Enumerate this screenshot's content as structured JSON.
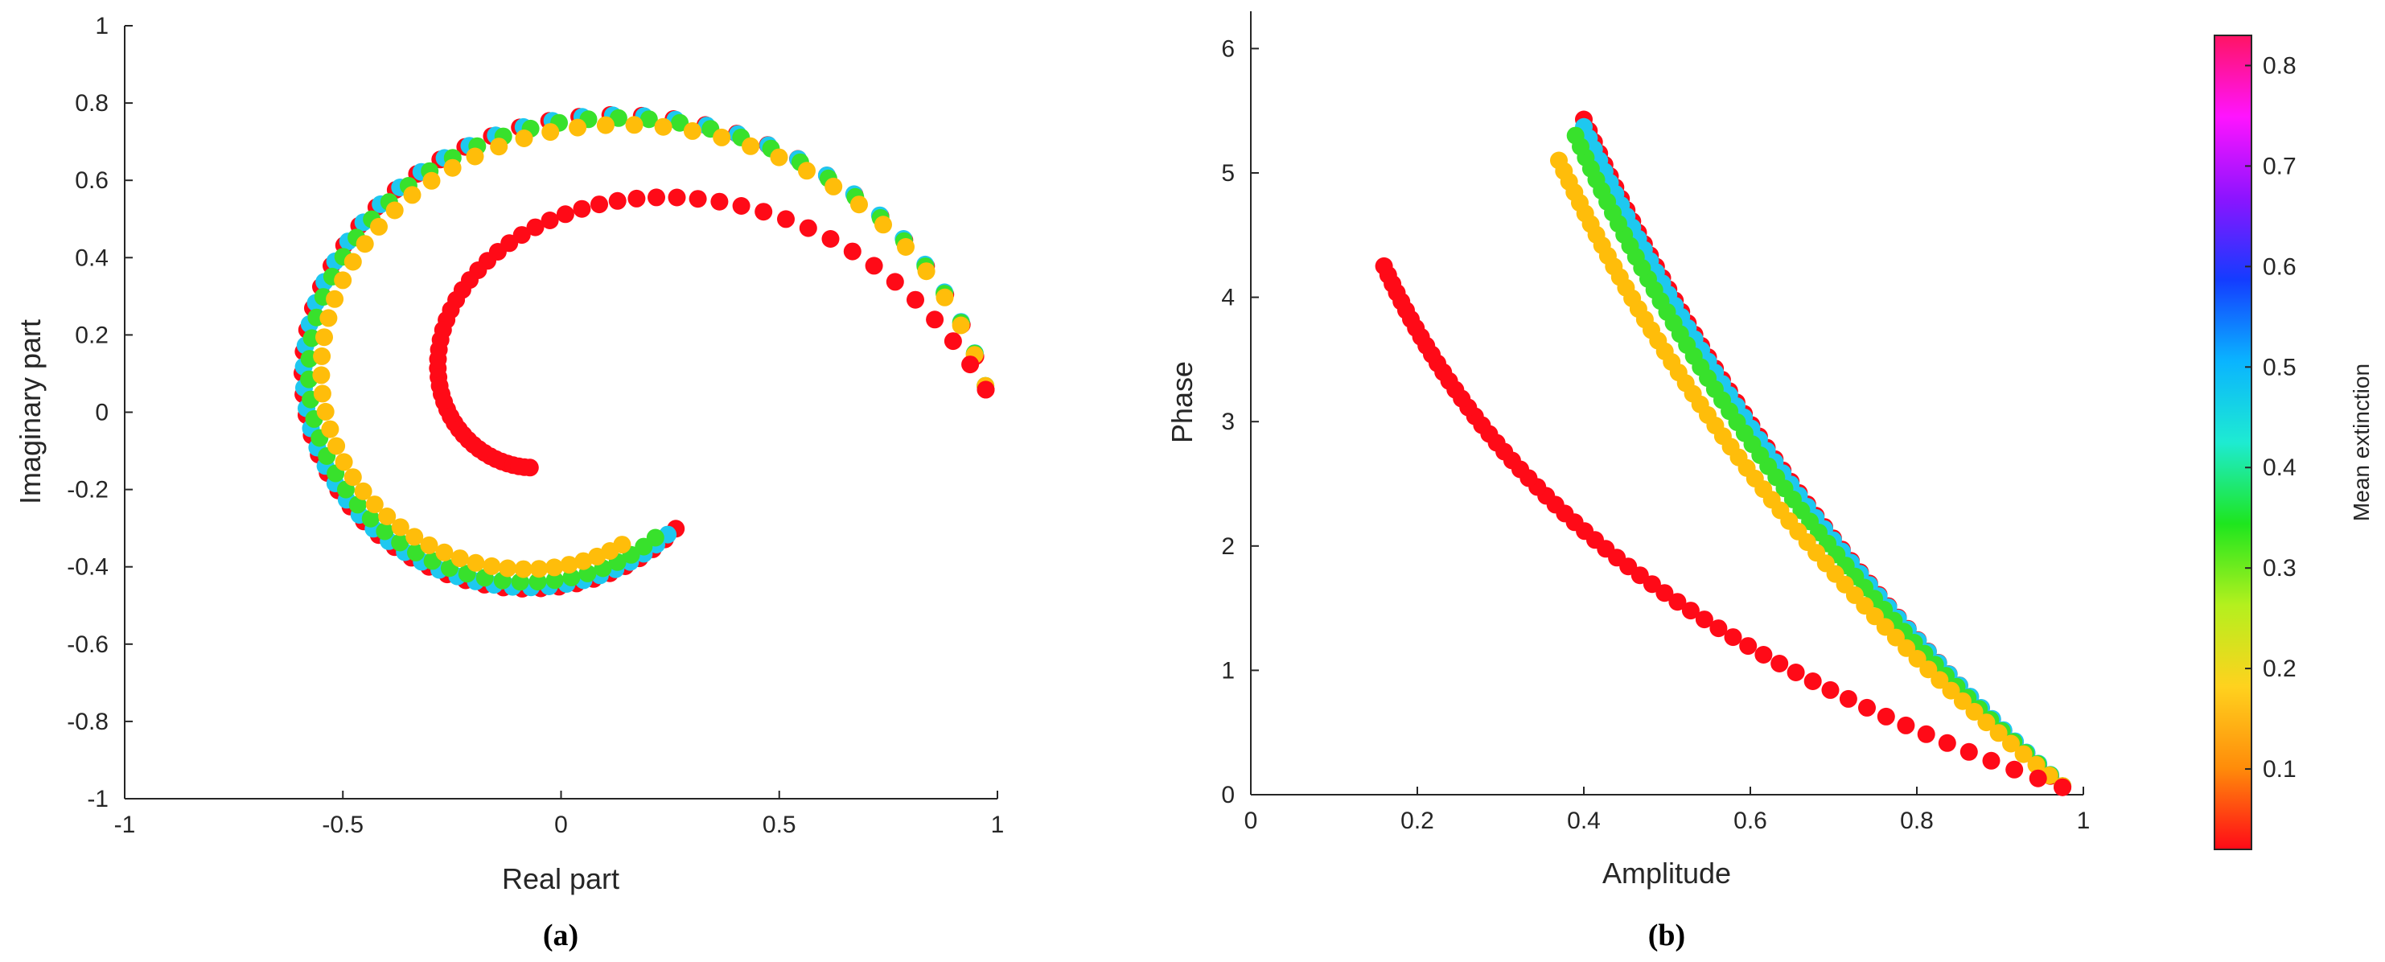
{
  "chart_data": [
    {
      "type": "scatter",
      "panel": "(a)",
      "xlabel": "Real part",
      "ylabel": "Imaginary part",
      "xlim": [
        -1,
        1
      ],
      "ylim": [
        -1,
        1
      ],
      "xticks": [
        "-1",
        "-0.5",
        "0",
        "0.5",
        "1"
      ],
      "yticks": [
        "-1",
        "-0.8",
        "-0.6",
        "-0.4",
        "-0.2",
        "0",
        "0.2",
        "0.4",
        "0.6",
        "0.8",
        "1"
      ],
      "grid": false,
      "series": [
        {
          "extinction": 0.02,
          "color": "#ff0a17",
          "amp_start": 0.975,
          "amp_end": 0.4,
          "phase_start": 0.06,
          "phase_end": 5.43
        },
        {
          "extinction": 0.45,
          "color": "#1ec8f0",
          "amp_start": 0.975,
          "amp_end": 0.4,
          "phase_start": 0.07,
          "phase_end": 5.37
        },
        {
          "extinction": 0.3,
          "color": "#38e12c",
          "amp_start": 0.975,
          "amp_end": 0.39,
          "phase_start": 0.07,
          "phase_end": 5.3
        },
        {
          "extinction": 0.12,
          "color": "#ffbd0a",
          "amp_start": 0.975,
          "amp_end": 0.37,
          "phase_start": 0.07,
          "phase_end": 5.1
        },
        {
          "extinction": 0.82,
          "color": "#ff0a17",
          "amp_start": 0.975,
          "amp_end": 0.16,
          "phase_start": 0.06,
          "phase_end": 4.25
        }
      ],
      "caption": "(a)"
    },
    {
      "type": "scatter",
      "panel": "(b)",
      "xlabel": "Amplitude",
      "ylabel": "Phase",
      "xlim": [
        0,
        1
      ],
      "ylim": [
        0,
        6.3
      ],
      "xticks": [
        "0",
        "0.2",
        "0.4",
        "0.6",
        "0.8",
        "1"
      ],
      "yticks": [
        "0",
        "1",
        "2",
        "3",
        "4",
        "5",
        "6"
      ],
      "grid": false,
      "series_ref": "same five series as panel (a), plotted as amplitude vs phase",
      "caption": "(b)"
    }
  ],
  "colorbar": {
    "label": "Mean extinction",
    "range": [
      0.02,
      0.83
    ],
    "ticks": [
      "0.1",
      "0.2",
      "0.3",
      "0.4",
      "0.5",
      "0.6",
      "0.7",
      "0.8"
    ],
    "colormap": [
      "#ff0a17",
      "#ff8c0a",
      "#ffd21e",
      "#b4f01e",
      "#1ee61e",
      "#1eebd2",
      "#0ab4ff",
      "#143cff",
      "#8c14ff",
      "#ff14ff",
      "#ff1464"
    ]
  },
  "points_per_series": 60
}
